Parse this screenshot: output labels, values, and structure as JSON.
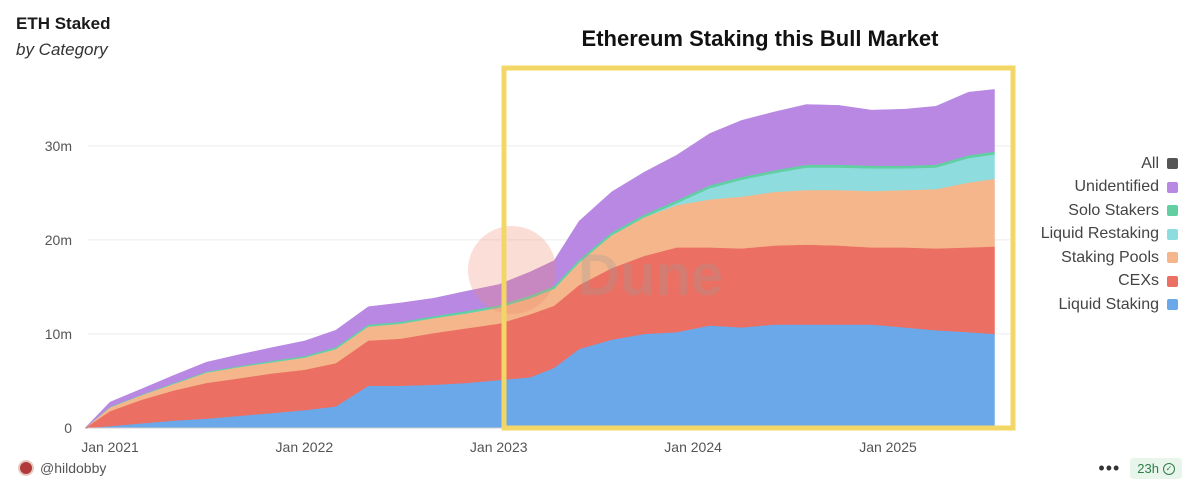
{
  "header": {
    "title": "ETH Staked",
    "subtitle": "by Category"
  },
  "annotation": {
    "text": "Ethereum Staking this Bull Market"
  },
  "watermark": {
    "text": "Dune"
  },
  "footer": {
    "author": "@hildobby",
    "more": "•••",
    "age": "23h"
  },
  "chart_data": {
    "type": "area",
    "stacked": true,
    "title": "ETH Staked",
    "subtitle": "by Category",
    "xlabel": "",
    "ylabel": "",
    "ylim": [
      0,
      37
    ],
    "yticks": [
      0,
      10,
      20,
      30
    ],
    "ytick_labels": [
      "0",
      "10m",
      "20m",
      "30m"
    ],
    "xticks": [
      "2021-01-01",
      "2022-01-01",
      "2023-01-01",
      "2024-01-01",
      "2025-01-01"
    ],
    "xtick_labels": [
      "Jan 2021",
      "Jan 2022",
      "Jan 2023",
      "Jan 2024",
      "Jan 2025"
    ],
    "grid": true,
    "legend_position": "right",
    "legend": [
      "All",
      "Unidentified",
      "Solo Stakers",
      "Liquid Restaking",
      "Staking Pools",
      "CEXs",
      "Liquid Staking"
    ],
    "x": [
      "2020-11-15",
      "2021-01-01",
      "2021-03-01",
      "2021-05-01",
      "2021-07-01",
      "2021-09-01",
      "2021-11-01",
      "2022-01-01",
      "2022-03-01",
      "2022-05-01",
      "2022-07-01",
      "2022-09-01",
      "2022-11-01",
      "2023-01-01",
      "2023-03-01",
      "2023-04-15",
      "2023-06-01",
      "2023-08-01",
      "2023-10-01",
      "2023-12-01",
      "2024-02-01",
      "2024-04-01",
      "2024-06-01",
      "2024-08-01",
      "2024-10-01",
      "2024-12-01",
      "2025-02-01",
      "2025-04-01",
      "2025-06-01",
      "2025-07-20"
    ],
    "series": [
      {
        "name": "Liquid Staking",
        "color": "#6aa8ea",
        "values": [
          0,
          0.2,
          0.5,
          0.8,
          1.0,
          1.3,
          1.6,
          1.9,
          2.3,
          4.5,
          4.5,
          4.6,
          4.8,
          5.1,
          5.4,
          6.4,
          8.4,
          9.4,
          10.0,
          10.2,
          10.9,
          10.7,
          11.0,
          11.0,
          11.0,
          11.0,
          10.7,
          10.4,
          10.2,
          10.0
        ]
      },
      {
        "name": "CEXs",
        "color": "#ec6f63",
        "values": [
          0,
          1.6,
          2.5,
          3.2,
          3.8,
          4.0,
          4.2,
          4.3,
          4.6,
          4.8,
          5.0,
          5.5,
          5.8,
          6.0,
          6.7,
          6.6,
          6.8,
          7.6,
          8.3,
          9.0,
          8.3,
          8.4,
          8.4,
          8.5,
          8.4,
          8.2,
          8.5,
          8.7,
          9.0,
          9.3
        ]
      },
      {
        "name": "Staking Pools",
        "color": "#f4b68a",
        "values": [
          0,
          0.4,
          0.5,
          0.7,
          1.1,
          1.2,
          1.2,
          1.3,
          1.5,
          1.5,
          1.6,
          1.6,
          1.6,
          1.7,
          1.7,
          1.8,
          2.4,
          3.5,
          4.1,
          4.5,
          5.1,
          5.5,
          5.7,
          5.8,
          5.9,
          6.0,
          6.1,
          6.3,
          6.9,
          7.2
        ]
      },
      {
        "name": "Liquid Restaking",
        "color": "#8fdcdf",
        "values": [
          0,
          0,
          0,
          0,
          0,
          0,
          0,
          0,
          0,
          0,
          0,
          0,
          0,
          0,
          0,
          0,
          0,
          0,
          0,
          0.2,
          1.2,
          1.8,
          2.0,
          2.4,
          2.4,
          2.4,
          2.3,
          2.3,
          2.6,
          2.6
        ]
      },
      {
        "name": "Solo Stakers",
        "color": "#62cfa3",
        "values": [
          0,
          0.05,
          0.05,
          0.1,
          0.1,
          0.1,
          0.15,
          0.15,
          0.2,
          0.2,
          0.2,
          0.2,
          0.25,
          0.25,
          0.3,
          0.3,
          0.3,
          0.3,
          0.3,
          0.3,
          0.3,
          0.3,
          0.3,
          0.3,
          0.3,
          0.3,
          0.3,
          0.3,
          0.3,
          0.3
        ]
      },
      {
        "name": "Unidentified",
        "color": "#b888e3",
        "values": [
          0,
          0.5,
          0.6,
          0.8,
          1.0,
          1.2,
          1.4,
          1.6,
          1.8,
          1.9,
          2.0,
          1.9,
          2.1,
          2.2,
          2.5,
          2.7,
          4.1,
          4.3,
          4.5,
          4.8,
          5.5,
          6.0,
          6.2,
          6.4,
          6.3,
          5.9,
          6.0,
          6.2,
          6.7,
          6.6
        ]
      }
    ],
    "all": {
      "name": "All",
      "color": "#555555"
    }
  },
  "colors": {
    "highlight_box": "#f3d766",
    "grid": "#ececec",
    "axis": "#d0d0d0"
  }
}
